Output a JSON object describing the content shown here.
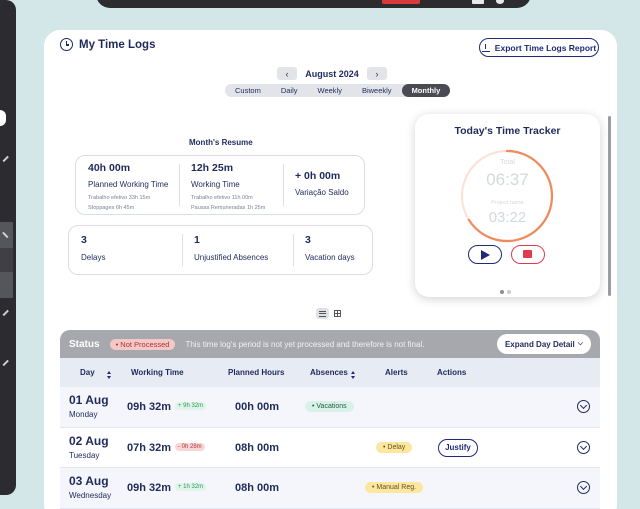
{
  "header": {
    "title": "My Time Logs",
    "export_label": "Export Time Logs Report"
  },
  "period": {
    "month_label": "August 2024",
    "prev": "‹",
    "next": "›",
    "tabs": [
      {
        "label": "Custom",
        "active": false
      },
      {
        "label": "Daily",
        "active": false
      },
      {
        "label": "Weekly",
        "active": false
      },
      {
        "label": "Biweekly",
        "active": false
      },
      {
        "label": "Monthly",
        "active": true
      }
    ]
  },
  "resume": {
    "title": "Month's Resume",
    "planned": {
      "value": "40h 00m",
      "label": "Planned Working Time",
      "detail1": "Trabalho efetivo  33h 15m",
      "detail2": "Stoppages  6h 45m"
    },
    "working": {
      "value": "12h 25m",
      "label": "Working Time",
      "detail1": "Trabalho efetivo  11h 00m",
      "detail2": "Pausas Remuneradas  1h 25m"
    },
    "saldo": {
      "value": "+ 0h 00m",
      "label": "Variação Saldo"
    },
    "delays": {
      "value": "3",
      "label": "Delays"
    },
    "absences": {
      "value": "1",
      "label": "Unjustified Absences"
    },
    "vacation": {
      "value": "3",
      "label": "Vacation days"
    }
  },
  "tracker": {
    "title": "Today's Time Tracker",
    "total_label": "Total",
    "total_value": "06:37",
    "project_label": "Project name",
    "project_value": "03:22",
    "progress_fraction": 0.66
  },
  "status": {
    "title": "Status",
    "badge": "• Not Processed",
    "message": "This time log's period is not yet processed and therefore is not final.",
    "expand_label": "Expand Day Detail"
  },
  "table": {
    "headers": {
      "day": "Day",
      "working": "Working Time",
      "planned": "Planned Hours",
      "absences": "Absences",
      "alerts": "Alerts",
      "actions": "Actions"
    },
    "rows": [
      {
        "date": "01 Aug",
        "weekday": "Monday",
        "working": "09h 32m",
        "diff": "+ 9h 32m",
        "planned": "00h 00m",
        "absence": "• Vacations",
        "alert": "",
        "action": ""
      },
      {
        "date": "02 Aug",
        "weekday": "Tuesday",
        "working": "07h 32m",
        "diff": "- 0h 28m",
        "planned": "08h 00m",
        "absence": "",
        "alert": "• Delay",
        "action": "Justify"
      },
      {
        "date": "03 Aug",
        "weekday": "Wednesday",
        "working": "09h 32m",
        "diff": "+ 1h 32m",
        "planned": "08h 00m",
        "absence": "",
        "alert": "• Manual Reg.",
        "action": ""
      }
    ]
  },
  "colors": {
    "background": "#d3e6e8",
    "primary": "#1f2a7a",
    "timer_ring": "#f08a5d",
    "stop": "#e23a4a",
    "status_bar": "#a6a8ad"
  }
}
